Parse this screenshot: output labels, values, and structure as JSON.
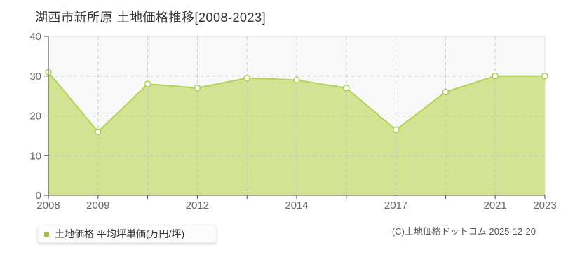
{
  "title": "湖西市新所原 土地価格推移[2008-2023]",
  "legend": {
    "label": "土地価格 平均坪単価(万円/坪)",
    "swatch_color": "#a4c629"
  },
  "footer": {
    "copyright": "(C)土地価格ドットコム 2025-12-20"
  },
  "chart_data": {
    "type": "area",
    "title": "湖西市新所原 土地価格推移[2008-2023]",
    "xlabel": "",
    "ylabel": "平均坪単価(万円/坪)",
    "categories": [
      "2008",
      "2009",
      "",
      "2012",
      "",
      "2014",
      "",
      "2017",
      "",
      "2021",
      "2023"
    ],
    "values": [
      31,
      16,
      28,
      27,
      29.5,
      29,
      27,
      16.5,
      26,
      30,
      30
    ],
    "series_name": "土地価格 平均坪単価(万円/坪)",
    "ylim": [
      0,
      40
    ],
    "yticks": [
      0,
      10,
      20,
      30,
      40
    ],
    "grid": true,
    "legend_position": "bottom-left",
    "colors": {
      "area_fill": "#d2e394",
      "line": "#b2d455",
      "marker_fill": "#ffffff",
      "marker_stroke": "#aacc4e",
      "plot_bg": "#f8f8f8",
      "plot_border": "#e2e2e2",
      "gridline": "#c3c3c3",
      "axis": "#4a4a4a",
      "tick_label": "#666666"
    }
  }
}
